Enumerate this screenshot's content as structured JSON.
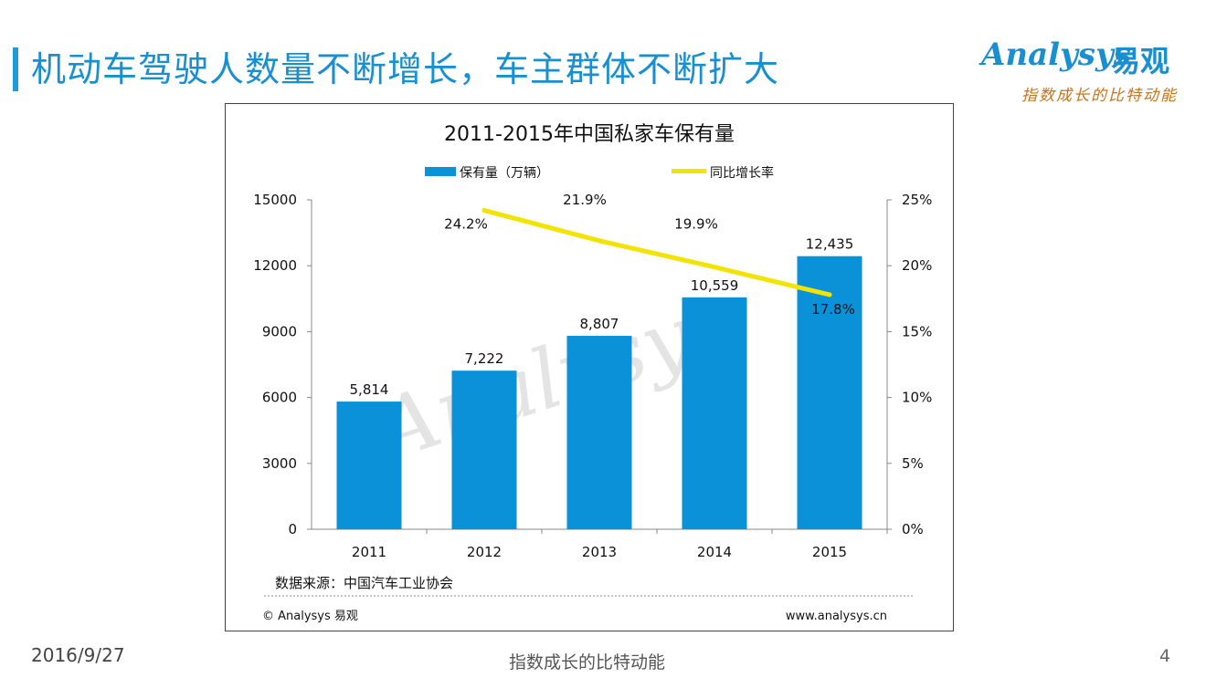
{
  "page": {
    "title": "机动车驾驶人数量不断增长，车主群体不断扩大",
    "date": "2016/9/27",
    "footer_slogan": "指数成长的比特动能",
    "page_number": "4"
  },
  "logo": {
    "brand": "Analysys",
    "brand_cn": "易观",
    "slogan": "指数成长的比特动能"
  },
  "chart_source": {
    "source": "数据来源：中国汽车工业协会",
    "copyright": "© Analysys 易观",
    "website": "www.analysys.cn"
  },
  "colors": {
    "accent": "#1a8fcf",
    "bar": "#0b91d8",
    "line": "#f2e300",
    "slogan": "#c8731c"
  },
  "chart_data": {
    "type": "bar",
    "title": "2011-2015年中国私家车保有量",
    "categories": [
      "2011",
      "2012",
      "2013",
      "2014",
      "2015"
    ],
    "series": [
      {
        "name": "保有量（万辆）",
        "type": "bar",
        "axis": "left",
        "values": [
          5814,
          7222,
          8807,
          10559,
          12435
        ],
        "labels": [
          "5,814",
          "7,222",
          "8,807",
          "10,559",
          "12,435"
        ]
      },
      {
        "name": "同比增长率",
        "type": "line",
        "axis": "right",
        "values": [
          null,
          24.2,
          21.9,
          19.9,
          17.8
        ],
        "labels": [
          "",
          "24.2%",
          "21.9%",
          "19.9%",
          "17.8%"
        ]
      }
    ],
    "ylim": [
      0,
      15000
    ],
    "y_ticks": [
      "0",
      "3000",
      "6000",
      "9000",
      "12000",
      "15000"
    ],
    "y2lim": [
      0,
      25
    ],
    "y2_ticks": [
      "0%",
      "5%",
      "10%",
      "15%",
      "20%",
      "25%"
    ],
    "legend": "top",
    "grid": false
  }
}
